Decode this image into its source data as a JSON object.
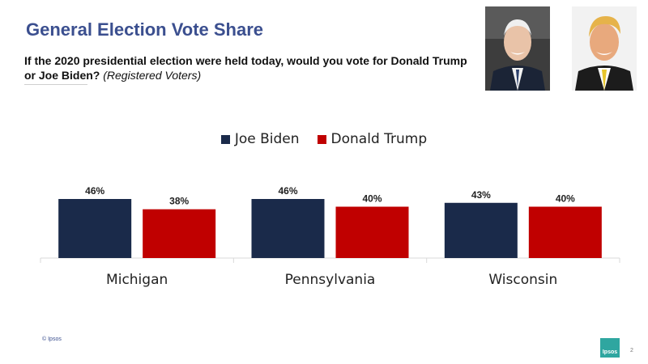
{
  "header": {
    "title": "General Election Vote Share",
    "question": " If the 2020 presidential election were held today, would you vote for Donald Trump or Joe Biden?",
    "question_note": "(Registered Voters)"
  },
  "chart_data": {
    "type": "bar",
    "categories": [
      "Michigan",
      "Pennsylvania",
      "Wisconsin"
    ],
    "series": [
      {
        "name": "Joe Biden",
        "values": [
          46,
          46,
          43
        ],
        "labels": [
          "46%",
          "46%",
          "43%"
        ],
        "color": "#1a2a4a"
      },
      {
        "name": "Donald Trump",
        "values": [
          38,
          40,
          40
        ],
        "labels": [
          "38%",
          "40%",
          "40%"
        ],
        "color": "#c00000"
      }
    ],
    "ylim": [
      0,
      46
    ],
    "legend_position": "top-center",
    "grid": false
  },
  "footer": {
    "copyright": "© Ipsos",
    "logo_text": "Ipsos",
    "page_number": "2"
  },
  "photos": [
    {
      "name": "biden-photo",
      "bg": "#3a3a3a"
    },
    {
      "name": "trump-photo",
      "bg": "#f2f2f2"
    }
  ]
}
